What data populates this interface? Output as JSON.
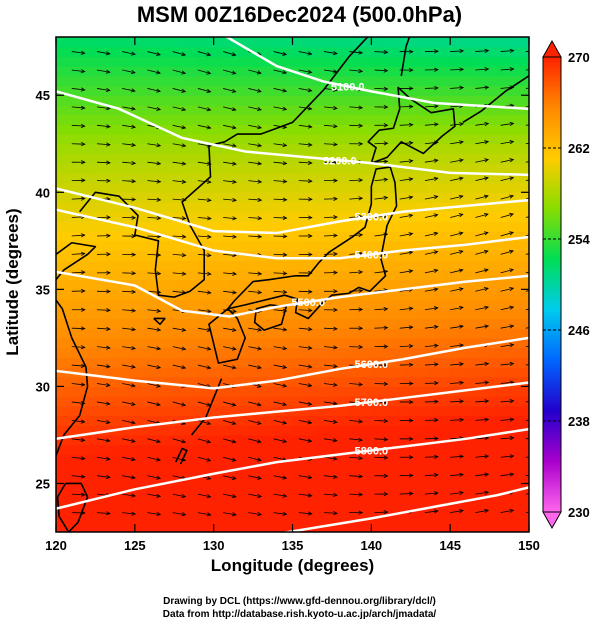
{
  "title": "MSM 00Z16Dec2024 (500.0hPa)",
  "xaxis": {
    "label": "Longitude (degrees)",
    "ticks": [
      120,
      125,
      130,
      135,
      140,
      145,
      150
    ],
    "range": [
      120,
      150
    ]
  },
  "yaxis": {
    "label": "Latitude  (degrees)",
    "ticks": [
      25,
      30,
      35,
      40,
      45
    ],
    "range": [
      22.5,
      48
    ]
  },
  "colorbar": {
    "ticks": [
      230,
      238,
      246,
      254,
      262,
      270
    ],
    "range": [
      230,
      270
    ],
    "colors": [
      "#ff66ee",
      "#aa00cc",
      "#2200cc",
      "#0066ff",
      "#00ccee",
      "#00dd55",
      "#88dd00",
      "#ffcc00",
      "#ff8800",
      "#ff2200"
    ]
  },
  "contours": [
    {
      "label": "5100.0",
      "lat_at_lon": [
        [
          120,
          49.5
        ],
        [
          126,
          49.2
        ],
        [
          130,
          48.4
        ],
        [
          134,
          46.5
        ],
        [
          137,
          45.7
        ],
        [
          140,
          45.2
        ],
        [
          144,
          44.6
        ],
        [
          148,
          44.4
        ],
        [
          150,
          44.3
        ]
      ]
    },
    {
      "label": "5200.0",
      "lat_at_lon": [
        [
          120,
          45.2
        ],
        [
          124,
          44.3
        ],
        [
          128,
          42.8
        ],
        [
          132,
          42.1
        ],
        [
          136,
          41.8
        ],
        [
          140,
          41.5
        ],
        [
          145,
          41.0
        ],
        [
          150,
          40.9
        ]
      ]
    },
    {
      "label": "5300.0",
      "lat_at_lon": [
        [
          120,
          40.2
        ],
        [
          125,
          39.2
        ],
        [
          130,
          38.0
        ],
        [
          134,
          37.9
        ],
        [
          138,
          38.5
        ],
        [
          142,
          39.0
        ],
        [
          146,
          39.3
        ],
        [
          150,
          39.6
        ]
      ]
    },
    {
      "label": "5400.0",
      "lat_at_lon": [
        [
          120,
          39.1
        ],
        [
          125,
          38.2
        ],
        [
          130,
          37.0
        ],
        [
          134,
          36.6
        ],
        [
          138,
          36.6
        ],
        [
          142,
          37.0
        ],
        [
          146,
          37.3
        ],
        [
          150,
          37.7
        ]
      ]
    },
    {
      "label": "5500.0",
      "lat_at_lon": [
        [
          120,
          35.9
        ],
        [
          125,
          35.2
        ],
        [
          128,
          33.9
        ],
        [
          131,
          33.6
        ],
        [
          134,
          34.1
        ],
        [
          138,
          34.6
        ],
        [
          142,
          35.0
        ],
        [
          146,
          35.4
        ],
        [
          150,
          35.7
        ]
      ]
    },
    {
      "label": "5600.0",
      "lat_at_lon": [
        [
          120,
          30.8
        ],
        [
          125,
          30.3
        ],
        [
          130,
          29.9
        ],
        [
          134,
          30.3
        ],
        [
          138,
          30.9
        ],
        [
          142,
          31.4
        ],
        [
          146,
          32.0
        ],
        [
          150,
          32.5
        ]
      ]
    },
    {
      "label": "5700.0",
      "lat_at_lon": [
        [
          120,
          27.3
        ],
        [
          125,
          27.9
        ],
        [
          130,
          28.4
        ],
        [
          134,
          28.7
        ],
        [
          138,
          29.0
        ],
        [
          142,
          29.4
        ],
        [
          146,
          29.8
        ],
        [
          150,
          30.2
        ]
      ]
    },
    {
      "label": "5800.0",
      "lat_at_lon": [
        [
          120,
          23.7
        ],
        [
          125,
          24.7
        ],
        [
          130,
          25.5
        ],
        [
          134,
          26.1
        ],
        [
          138,
          26.5
        ],
        [
          142,
          26.9
        ],
        [
          146,
          27.3
        ],
        [
          150,
          27.8
        ]
      ]
    },
    {
      "label": "",
      "lat_at_lon": [
        [
          134,
          22.4
        ],
        [
          140,
          23.2
        ],
        [
          144,
          23.8
        ],
        [
          148,
          24.4
        ],
        [
          150,
          24.8
        ]
      ]
    }
  ],
  "footer": {
    "line1": "Drawing by DCL (https://www.gfd-dennou.org/library/dcl/)",
    "line2": "Data from http://database.rish.kyoto-u.ac.jp/arch/jmadata/"
  }
}
